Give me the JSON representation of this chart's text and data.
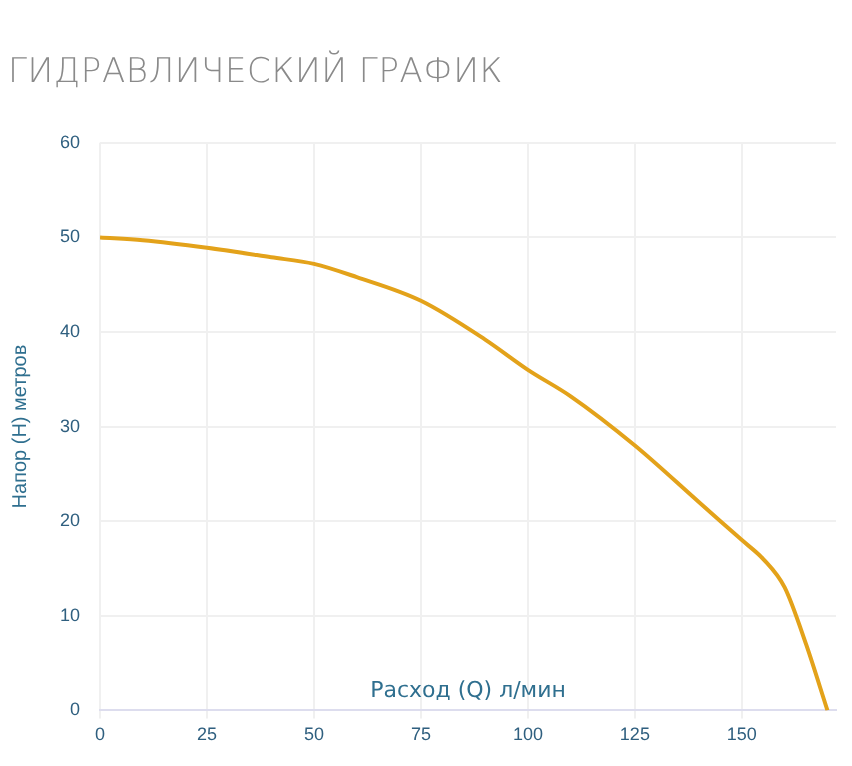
{
  "chart_data": {
    "type": "line",
    "title": "ГИДРАВЛИЧЕСКИЙ ГРАФИК",
    "xlabel": "Расход (Q) л/мин",
    "ylabel": "Напор (H) метров",
    "series": [
      {
        "color": "#e3a21a",
        "x": [
          0,
          10,
          25,
          40,
          50,
          60,
          75,
          90,
          100,
          110,
          125,
          140,
          150,
          155,
          160,
          165,
          170
        ],
        "values": [
          50,
          49.7,
          48.9,
          47.9,
          47.2,
          45.8,
          43.3,
          39.2,
          36,
          33.2,
          28,
          22,
          18,
          16,
          13,
          7,
          0
        ]
      }
    ],
    "xlim": [
      0,
      172
    ],
    "xticks": [
      0,
      25,
      50,
      75,
      100,
      125,
      150
    ],
    "ylim": [
      0,
      60
    ],
    "yticks": [
      0,
      10,
      20,
      30,
      40,
      50,
      60
    ],
    "grid": true,
    "marker": "none",
    "line_style": "solid",
    "legend": false
  }
}
